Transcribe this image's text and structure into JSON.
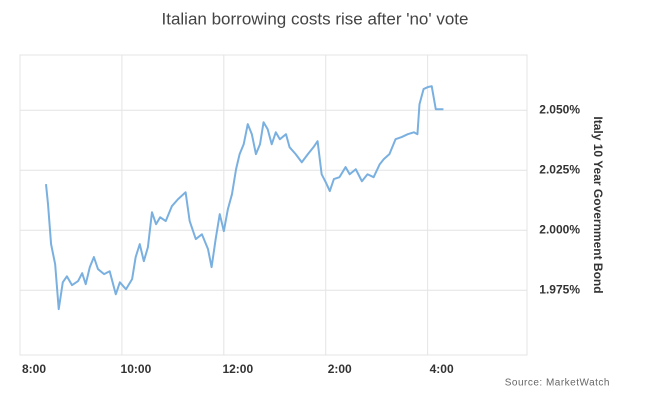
{
  "chart_data": {
    "type": "line",
    "title": "Italian borrowing costs rise after 'no' vote",
    "y_label": "Italy 10 Year Government Bond",
    "source": "Source: MarketWatch",
    "xlim": [
      8,
      17.95
    ],
    "xticks": [
      {
        "value": 8,
        "label": "8:00"
      },
      {
        "value": 10,
        "label": "10:00"
      },
      {
        "value": 12,
        "label": "12:00"
      },
      {
        "value": 14,
        "label": "2:00"
      },
      {
        "value": 16,
        "label": "4:00"
      }
    ],
    "ylim": [
      1.948,
      2.073
    ],
    "yticks": [
      {
        "value": 1.975,
        "label": "1.975%"
      },
      {
        "value": 2.0,
        "label": "2.000%"
      },
      {
        "value": 2.025,
        "label": "2.025%"
      },
      {
        "value": 2.05,
        "label": "2.050%"
      }
    ],
    "grid": true,
    "y_axis_side": "right",
    "x": [
      8.51,
      8.55,
      8.61,
      8.69,
      8.76,
      8.84,
      8.92,
      9.02,
      9.14,
      9.22,
      9.29,
      9.37,
      9.45,
      9.53,
      9.65,
      9.76,
      9.88,
      9.96,
      10.08,
      10.2,
      10.27,
      10.35,
      10.43,
      10.51,
      10.59,
      10.67,
      10.75,
      10.86,
      10.98,
      11.1,
      11.25,
      11.33,
      11.45,
      11.57,
      11.69,
      11.76,
      11.84,
      11.92,
      12.0,
      12.08,
      12.16,
      12.24,
      12.31,
      12.39,
      12.47,
      12.55,
      12.63,
      12.71,
      12.78,
      12.86,
      12.94,
      13.02,
      13.1,
      13.22,
      13.29,
      13.41,
      13.53,
      13.65,
      13.76,
      13.84,
      13.92,
      14.0,
      14.08,
      14.16,
      14.27,
      14.39,
      14.47,
      14.59,
      14.71,
      14.82,
      14.94,
      15.06,
      15.14,
      15.25,
      15.37,
      15.49,
      15.61,
      15.73,
      15.8,
      15.84,
      15.92,
      16.0,
      16.08,
      16.16,
      16.31
    ],
    "series": [
      {
        "color": "#7ab0e0",
        "values": [
          2.0192,
          2.0108,
          1.9942,
          1.9858,
          1.9671,
          1.9783,
          1.9808,
          1.9771,
          1.9788,
          1.9821,
          1.9775,
          1.9846,
          1.9888,
          1.9838,
          1.9817,
          1.9829,
          1.9733,
          1.9783,
          1.9754,
          1.9796,
          1.9888,
          1.9942,
          1.9871,
          1.9929,
          2.0075,
          2.0025,
          2.0054,
          2.0038,
          2.01,
          2.0129,
          2.0158,
          2.0038,
          1.9963,
          1.9983,
          1.9921,
          1.9846,
          1.9963,
          2.0067,
          1.9996,
          2.0088,
          2.015,
          2.0254,
          2.0317,
          2.0358,
          2.0442,
          2.04,
          2.0317,
          2.0358,
          2.045,
          2.0421,
          2.0358,
          2.0408,
          2.0379,
          2.04,
          2.0346,
          2.0317,
          2.0283,
          2.0317,
          2.0346,
          2.0371,
          2.0233,
          2.02,
          2.0163,
          2.0213,
          2.0221,
          2.0263,
          2.0233,
          2.0254,
          2.0204,
          2.0233,
          2.0221,
          2.0275,
          2.0296,
          2.0317,
          2.0379,
          2.0388,
          2.04,
          2.0408,
          2.04,
          2.0525,
          2.0588,
          2.0596,
          2.06,
          2.0504,
          2.0504
        ]
      }
    ]
  }
}
